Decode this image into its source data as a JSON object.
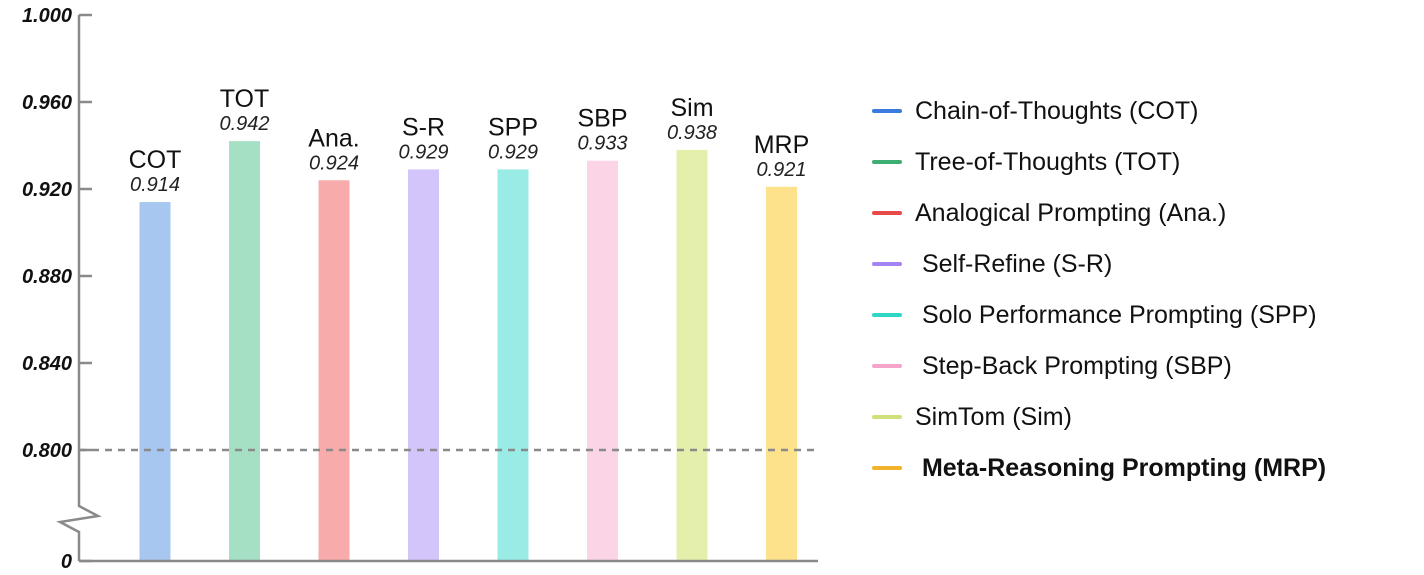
{
  "chart_data": {
    "type": "bar",
    "categories": [
      "COT",
      "TOT",
      "Ana.",
      "S-R",
      "SPP",
      "SBP",
      "Sim",
      "MRP"
    ],
    "values": [
      0.914,
      0.942,
      0.924,
      0.929,
      0.929,
      0.933,
      0.938,
      0.921
    ],
    "value_labels": [
      "0.914",
      "0.942",
      "0.924",
      "0.929",
      "0.929",
      "0.933",
      "0.938",
      "0.921"
    ],
    "colors": [
      "#a7c7f0",
      "#a5e0c4",
      "#f7abab",
      "#d3c4fa",
      "#98ece5",
      "#fbd4e6",
      "#e4efac",
      "#fde18b"
    ],
    "y_ticks": [
      "1.000",
      "0.960",
      "0.920",
      "0.880",
      "0.840",
      "0.800",
      "0"
    ],
    "ylim": [
      0.8,
      1.0
    ],
    "axis_break": true,
    "reference_line": 0.8,
    "grid": false,
    "legend_position": "right",
    "legend": [
      {
        "label": "Chain-of-Thoughts (COT)",
        "color": "#3b7be0",
        "bold": false
      },
      {
        "label": "Tree-of-Thoughts (TOT)",
        "color": "#3fae73",
        "bold": false
      },
      {
        "label": "Analogical Prompting (Ana.)",
        "color": "#e84a4a",
        "bold": false
      },
      {
        "label": " Self-Refine (S-R)",
        "color": "#a384f5",
        "bold": false
      },
      {
        "label": " Solo Performance Prompting (SPP)",
        "color": "#2fd6c6",
        "bold": false
      },
      {
        "label": " Step-Back Prompting (SBP)",
        "color": "#f5a6c8",
        "bold": false
      },
      {
        "label": "SimTom (Sim)",
        "color": "#cfe27a",
        "bold": false
      },
      {
        "label": " Meta-Reasoning Prompting (MRP)",
        "color": "#f2b32a",
        "bold": true
      }
    ]
  }
}
